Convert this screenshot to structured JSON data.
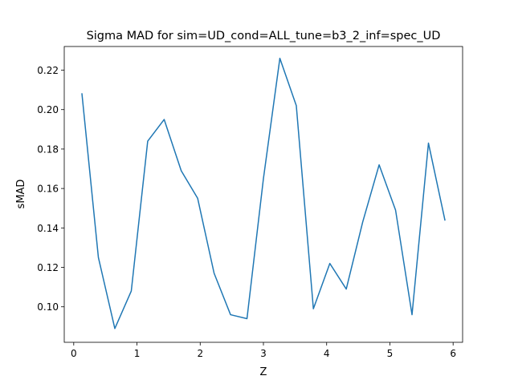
{
  "chart_data": {
    "type": "line",
    "title": "Sigma MAD for sim=UD_cond=ALL_tune=b3_2_inf=spec_UD",
    "xlabel": "Z",
    "ylabel": "sMAD",
    "xlim": [
      -0.15,
      6.15
    ],
    "ylim": [
      0.082,
      0.232
    ],
    "xticks": [
      0,
      1,
      2,
      3,
      4,
      5,
      6
    ],
    "xtick_labels": [
      "0",
      "1",
      "2",
      "3",
      "4",
      "5",
      "6"
    ],
    "yticks": [
      0.1,
      0.12,
      0.14,
      0.16,
      0.18,
      0.2,
      0.22
    ],
    "ytick_labels": [
      "0.10",
      "0.12",
      "0.14",
      "0.16",
      "0.18",
      "0.20",
      "0.22"
    ],
    "grid": false,
    "legend": "none",
    "series": [
      {
        "color": "#1f77b4",
        "x": [
          0.13,
          0.39,
          0.65,
          0.91,
          1.17,
          1.43,
          1.7,
          1.96,
          2.22,
          2.48,
          2.74,
          3.0,
          3.26,
          3.52,
          3.79,
          4.05,
          4.31,
          4.57,
          4.83,
          5.09,
          5.35,
          5.61,
          5.87
        ],
        "y": [
          0.208,
          0.125,
          0.089,
          0.108,
          0.184,
          0.195,
          0.169,
          0.155,
          0.117,
          0.096,
          0.094,
          0.165,
          0.226,
          0.202,
          0.099,
          0.122,
          0.109,
          0.143,
          0.172,
          0.149,
          0.096,
          0.183,
          0.144
        ]
      }
    ]
  }
}
